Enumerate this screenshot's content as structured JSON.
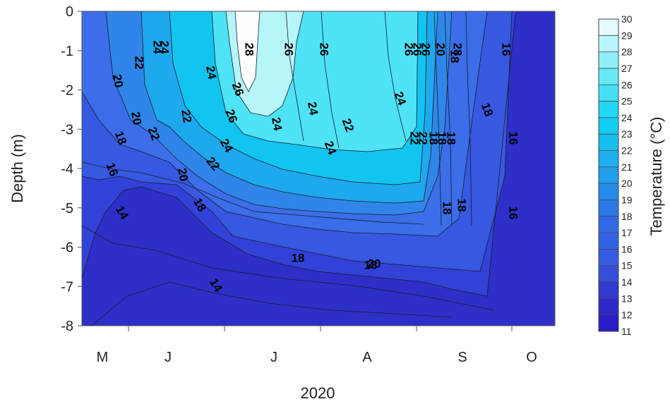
{
  "chart_data": {
    "type": "heatmap",
    "subtype": "filled-contour",
    "title": "",
    "xlabel": "2020",
    "ylabel": "Depth (m)",
    "x_tick_labels": [
      "M",
      "J",
      "J",
      "A",
      "S",
      "O"
    ],
    "y_ticks": [
      0,
      -1,
      -2,
      -3,
      -4,
      -5,
      -6,
      -7,
      -8
    ],
    "ylim": [
      -8,
      0
    ],
    "colorbar": {
      "label": "Temperature (°C)",
      "ticks": [
        30,
        29,
        28,
        27,
        26,
        25,
        24,
        23,
        22,
        21,
        20,
        19,
        18,
        17,
        16,
        15,
        14,
        13,
        12,
        11
      ],
      "range": [
        11,
        30
      ]
    },
    "contour_labels": [
      "28",
      "26",
      "26",
      "26",
      "26",
      "26",
      "26",
      "26",
      "24",
      "24",
      "24",
      "24",
      "24",
      "24",
      "24",
      "24",
      "22",
      "22",
      "22",
      "22",
      "22",
      "22",
      "22",
      "20",
      "20",
      "20",
      "20",
      "20",
      "18",
      "18",
      "18",
      "18",
      "18",
      "18",
      "18",
      "18",
      "18",
      "18",
      "18",
      "16",
      "16",
      "16",
      "16",
      "14",
      "14",
      "28"
    ],
    "colors": {
      "cold": "#2d2fc8",
      "mid": "#2f86e8",
      "warm": "#12d4f4",
      "hot": "#fafeff"
    }
  }
}
